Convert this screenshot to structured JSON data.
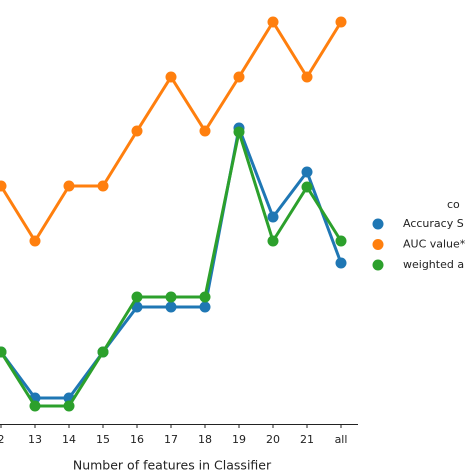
{
  "chart_data": {
    "type": "line",
    "x_label": "Number of features in Classifier",
    "categories": [
      "2",
      "13",
      "14",
      "15",
      "16",
      "17",
      "18",
      "19",
      "20",
      "21",
      "all"
    ],
    "ylim": [
      0,
      424
    ],
    "legend_title": "co",
    "series": [
      {
        "name": "Accuracy S",
        "color": "#1f77b4",
        "values": [
          72,
          26,
          26,
          72,
          117,
          117,
          117,
          296,
          207,
          252,
          161
        ]
      },
      {
        "name": "AUC value*",
        "color": "#ff7f0e",
        "values": [
          238,
          183,
          238,
          238,
          293,
          347,
          293,
          347,
          402,
          347,
          402
        ]
      },
      {
        "name": "weighted a",
        "color": "#2ca02c",
        "values": [
          72,
          18,
          18,
          72,
          127,
          127,
          127,
          292,
          183,
          237,
          183
        ]
      }
    ]
  }
}
